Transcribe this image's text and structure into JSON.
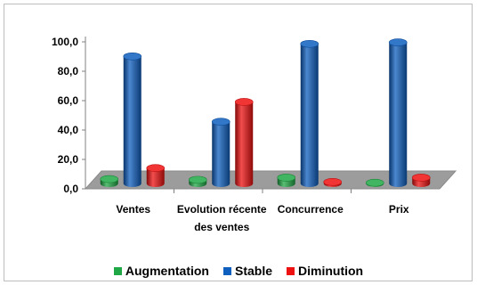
{
  "chart_data": {
    "type": "bar",
    "style": "3d-cylinder",
    "categories": [
      "Ventes",
      "Evolution récente des ventes",
      "Concurrence",
      "Prix"
    ],
    "category_lines": [
      [
        "Ventes"
      ],
      [
        "Evolution récente",
        "des ventes"
      ],
      [
        "Concurrence"
      ],
      [
        "Prix"
      ]
    ],
    "series": [
      {
        "name": "Augmentation",
        "color": "#21a846",
        "values": [
          3.0,
          2.5,
          4.0,
          0.5
        ]
      },
      {
        "name": "Stable",
        "color": "#0f5fbf",
        "values": [
          86.5,
          42.0,
          95.0,
          96.0
        ]
      },
      {
        "name": "Diminution",
        "color": "#ee1111",
        "values": [
          10.5,
          55.5,
          1.0,
          4.0
        ]
      }
    ],
    "y_ticks": [
      "0,0",
      "20,0",
      "40,0",
      "60,0",
      "80,0",
      "100,0"
    ],
    "y_tick_values": [
      0,
      20,
      40,
      60,
      80,
      100
    ],
    "ylim": [
      0,
      100
    ],
    "title": "",
    "xlabel": "",
    "ylabel": "",
    "grid": false,
    "legend_position": "bottom"
  }
}
